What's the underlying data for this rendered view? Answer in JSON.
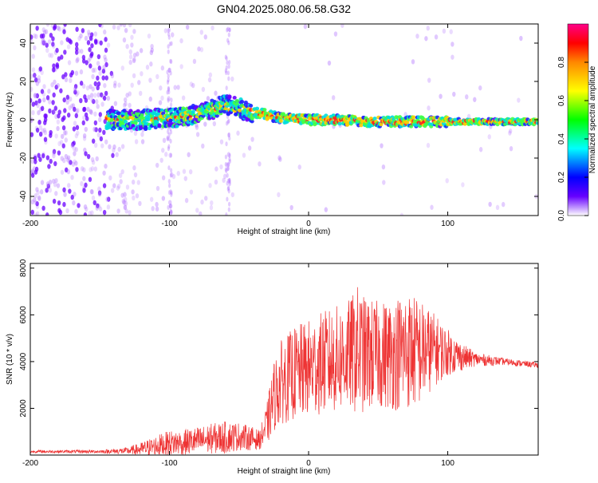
{
  "chart_data": [
    {
      "type": "heatmap",
      "title": "GN04.2025.080.06.58.G32",
      "xlabel": "Height of straight line (km)",
      "ylabel": "Frequency (Hz)",
      "xlim": [
        -200,
        165
      ],
      "ylim": [
        -50,
        50
      ],
      "xticks": [
        -200,
        -100,
        0,
        100
      ],
      "xtick_labels": [
        "-200",
        "-100",
        "0",
        "100"
      ],
      "yticks": [
        -40,
        -20,
        0,
        20,
        40
      ],
      "ytick_labels": [
        "-40",
        "-20",
        "0",
        "20",
        "40"
      ],
      "ridge_frequency": {
        "x": [
          -140,
          -120,
          -100,
          -80,
          -70,
          -60,
          -50,
          -40,
          -20,
          0,
          20,
          40,
          60,
          80,
          100,
          120,
          140,
          165
        ],
        "y": [
          0,
          0,
          1,
          3,
          5,
          8,
          6,
          4,
          1,
          0,
          0,
          -1,
          -1,
          -1,
          -1,
          -1,
          -1,
          -1
        ]
      },
      "colorbar": {
        "label": "Normalized spectral amplitude",
        "range": [
          0,
          1
        ],
        "ticks": [
          0.0,
          0.2,
          0.4,
          0.6,
          0.8
        ],
        "tick_labels": [
          "0.0",
          "0.2",
          "0.4",
          "0.6",
          "0.8"
        ]
      }
    },
    {
      "type": "line",
      "xlabel": "Height of straight line (km)",
      "ylabel": "SNR (10 * v/v)",
      "xlim": [
        -200,
        165
      ],
      "ylim": [
        0,
        8200
      ],
      "xticks": [
        -200,
        -100,
        0,
        100
      ],
      "xtick_labels": [
        "-200",
        "-100",
        "0",
        "100"
      ],
      "yticks": [
        2000,
        4000,
        6000,
        8000
      ],
      "ytick_labels": [
        "2000",
        "4000",
        "6000",
        "8000"
      ],
      "series": [
        {
          "name": "SNR",
          "color": "#ee3333",
          "envelope": {
            "x": [
              -200,
              -150,
              -130,
              -120,
              -110,
              -100,
              -90,
              -80,
              -70,
              -60,
              -50,
              -40,
              -35,
              -30,
              -25,
              -20,
              -15,
              -10,
              0,
              10,
              20,
              30,
              35,
              40,
              50,
              60,
              70,
              80,
              90,
              100,
              110,
              120,
              140,
              165
            ],
            "mean": [
              150,
              150,
              180,
              250,
              380,
              500,
              550,
              600,
              700,
              750,
              800,
              700,
              650,
              1300,
              2500,
              3100,
              3300,
              3500,
              3700,
              3950,
              4100,
              4300,
              4500,
              4300,
              4300,
              4300,
              4500,
              4400,
              4500,
              4400,
              4200,
              4100,
              4000,
              3850
            ],
            "amp": [
              60,
              70,
              150,
              300,
              450,
              550,
              550,
              600,
              650,
              700,
              600,
              500,
              400,
              900,
              1500,
              1800,
              1900,
              2000,
              2100,
              2200,
              2300,
              2400,
              2800,
              2500,
              2300,
              2400,
              2600,
              2300,
              1600,
              1000,
              600,
              300,
              150,
              120
            ]
          }
        }
      ]
    }
  ]
}
